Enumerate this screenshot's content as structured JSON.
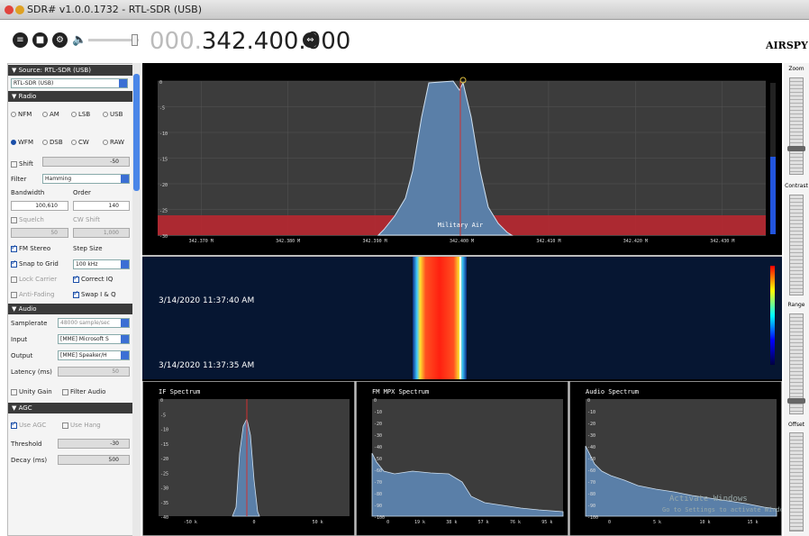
{
  "window": {
    "title": "SDR# v1.0.0.1732 - RTL-SDR (USB)"
  },
  "toolbar": {
    "freq_dim": "000.",
    "freq_main": "342.400.000",
    "brand": "AIRSPY"
  },
  "source": {
    "header": "Source: RTL-SDR (USB)",
    "device": "RTL-SDR (USB)"
  },
  "radio": {
    "header": "Radio",
    "modes_row1": [
      "NFM",
      "AM",
      "LSB",
      "USB"
    ],
    "modes_row2": [
      "WFM",
      "DSB",
      "CW",
      "RAW"
    ],
    "selected_mode": "WFM",
    "shift_label": "Shift",
    "shift_value": "-50",
    "filter_label": "Filter",
    "filter_value": "Hamming",
    "bandwidth_label": "Bandwidth",
    "order_label": "Order",
    "bandwidth_value": "100,610",
    "order_value": "140",
    "squelch_label": "Squelch",
    "cwshift_label": "CW Shift",
    "squelch_value": "50",
    "cwshift_value": "1,000",
    "fm_stereo": "FM Stereo",
    "step_size_label": "Step Size",
    "snap_to_grid": "Snap to Grid",
    "step_size_value": "100 kHz",
    "lock_carrier": "Lock Carrier",
    "correct_iq": "Correct IQ",
    "anti_fading": "Anti-Fading",
    "swap_iq": "Swap I & Q"
  },
  "audio": {
    "header": "Audio",
    "samplerate_label": "Samplerate",
    "samplerate_value": "48000 sample/sec",
    "input_label": "Input",
    "input_value": "[MME] Microsoft S",
    "output_label": "Output",
    "output_value": "[MME] Speaker/H",
    "latency_label": "Latency (ms)",
    "latency_value": "50",
    "unity_gain": "Unity Gain",
    "filter_audio": "Filter Audio"
  },
  "agc": {
    "header": "AGC",
    "use_agc": "Use AGC",
    "use_hang": "Use Hang",
    "threshold_label": "Threshold",
    "threshold_value": "-30",
    "decay_label": "Decay (ms)",
    "decay_value": "500"
  },
  "spectrum": {
    "y_ticks": [
      "0",
      "-5",
      "-10",
      "-15",
      "-20",
      "-25",
      "-30"
    ],
    "x_ticks": [
      "342.370 M",
      "342.380 M",
      "342.390 M",
      "342.400 M",
      "342.410 M",
      "342.420 M",
      "342.430 M"
    ],
    "band_label": "Military Air"
  },
  "waterfall": {
    "timestamps": [
      "3/14/2020 11:37:40 AM",
      "3/14/2020 11:37:35 AM"
    ]
  },
  "if_spectrum": {
    "title": "IF Spectrum",
    "y_ticks": [
      "0",
      "-5",
      "-10",
      "-15",
      "-20",
      "-25",
      "-30",
      "-35",
      "-40"
    ],
    "x_ticks": [
      "-50 k",
      "0",
      "50 k"
    ]
  },
  "mpx_spectrum": {
    "title": "FM MPX Spectrum",
    "y_ticks": [
      "0",
      "-10",
      "-20",
      "-30",
      "-40",
      "-50",
      "-60",
      "-70",
      "-80",
      "-90",
      "-100"
    ],
    "x_ticks": [
      "0",
      "19 k",
      "38 k",
      "57 k",
      "76 k",
      "95 k"
    ]
  },
  "audio_spectrum": {
    "title": "Audio Spectrum",
    "y_ticks": [
      "0",
      "-10",
      "-20",
      "-30",
      "-40",
      "-50",
      "-60",
      "-70",
      "-80",
      "-90",
      "-100"
    ],
    "x_ticks": [
      "0",
      "5 k",
      "10 k",
      "15 k"
    ]
  },
  "watermark": {
    "line1": "Activate Windows",
    "line2": "Go to Settings to activate Windows."
  },
  "right_panel": {
    "zoom": "Zoom",
    "contrast": "Contrast",
    "range": "Range",
    "offset": "Offset"
  },
  "colors": {
    "accent": "#1a4ea8",
    "spectrum_fill": "#5a7fa8",
    "band_red": "#c0262f"
  }
}
